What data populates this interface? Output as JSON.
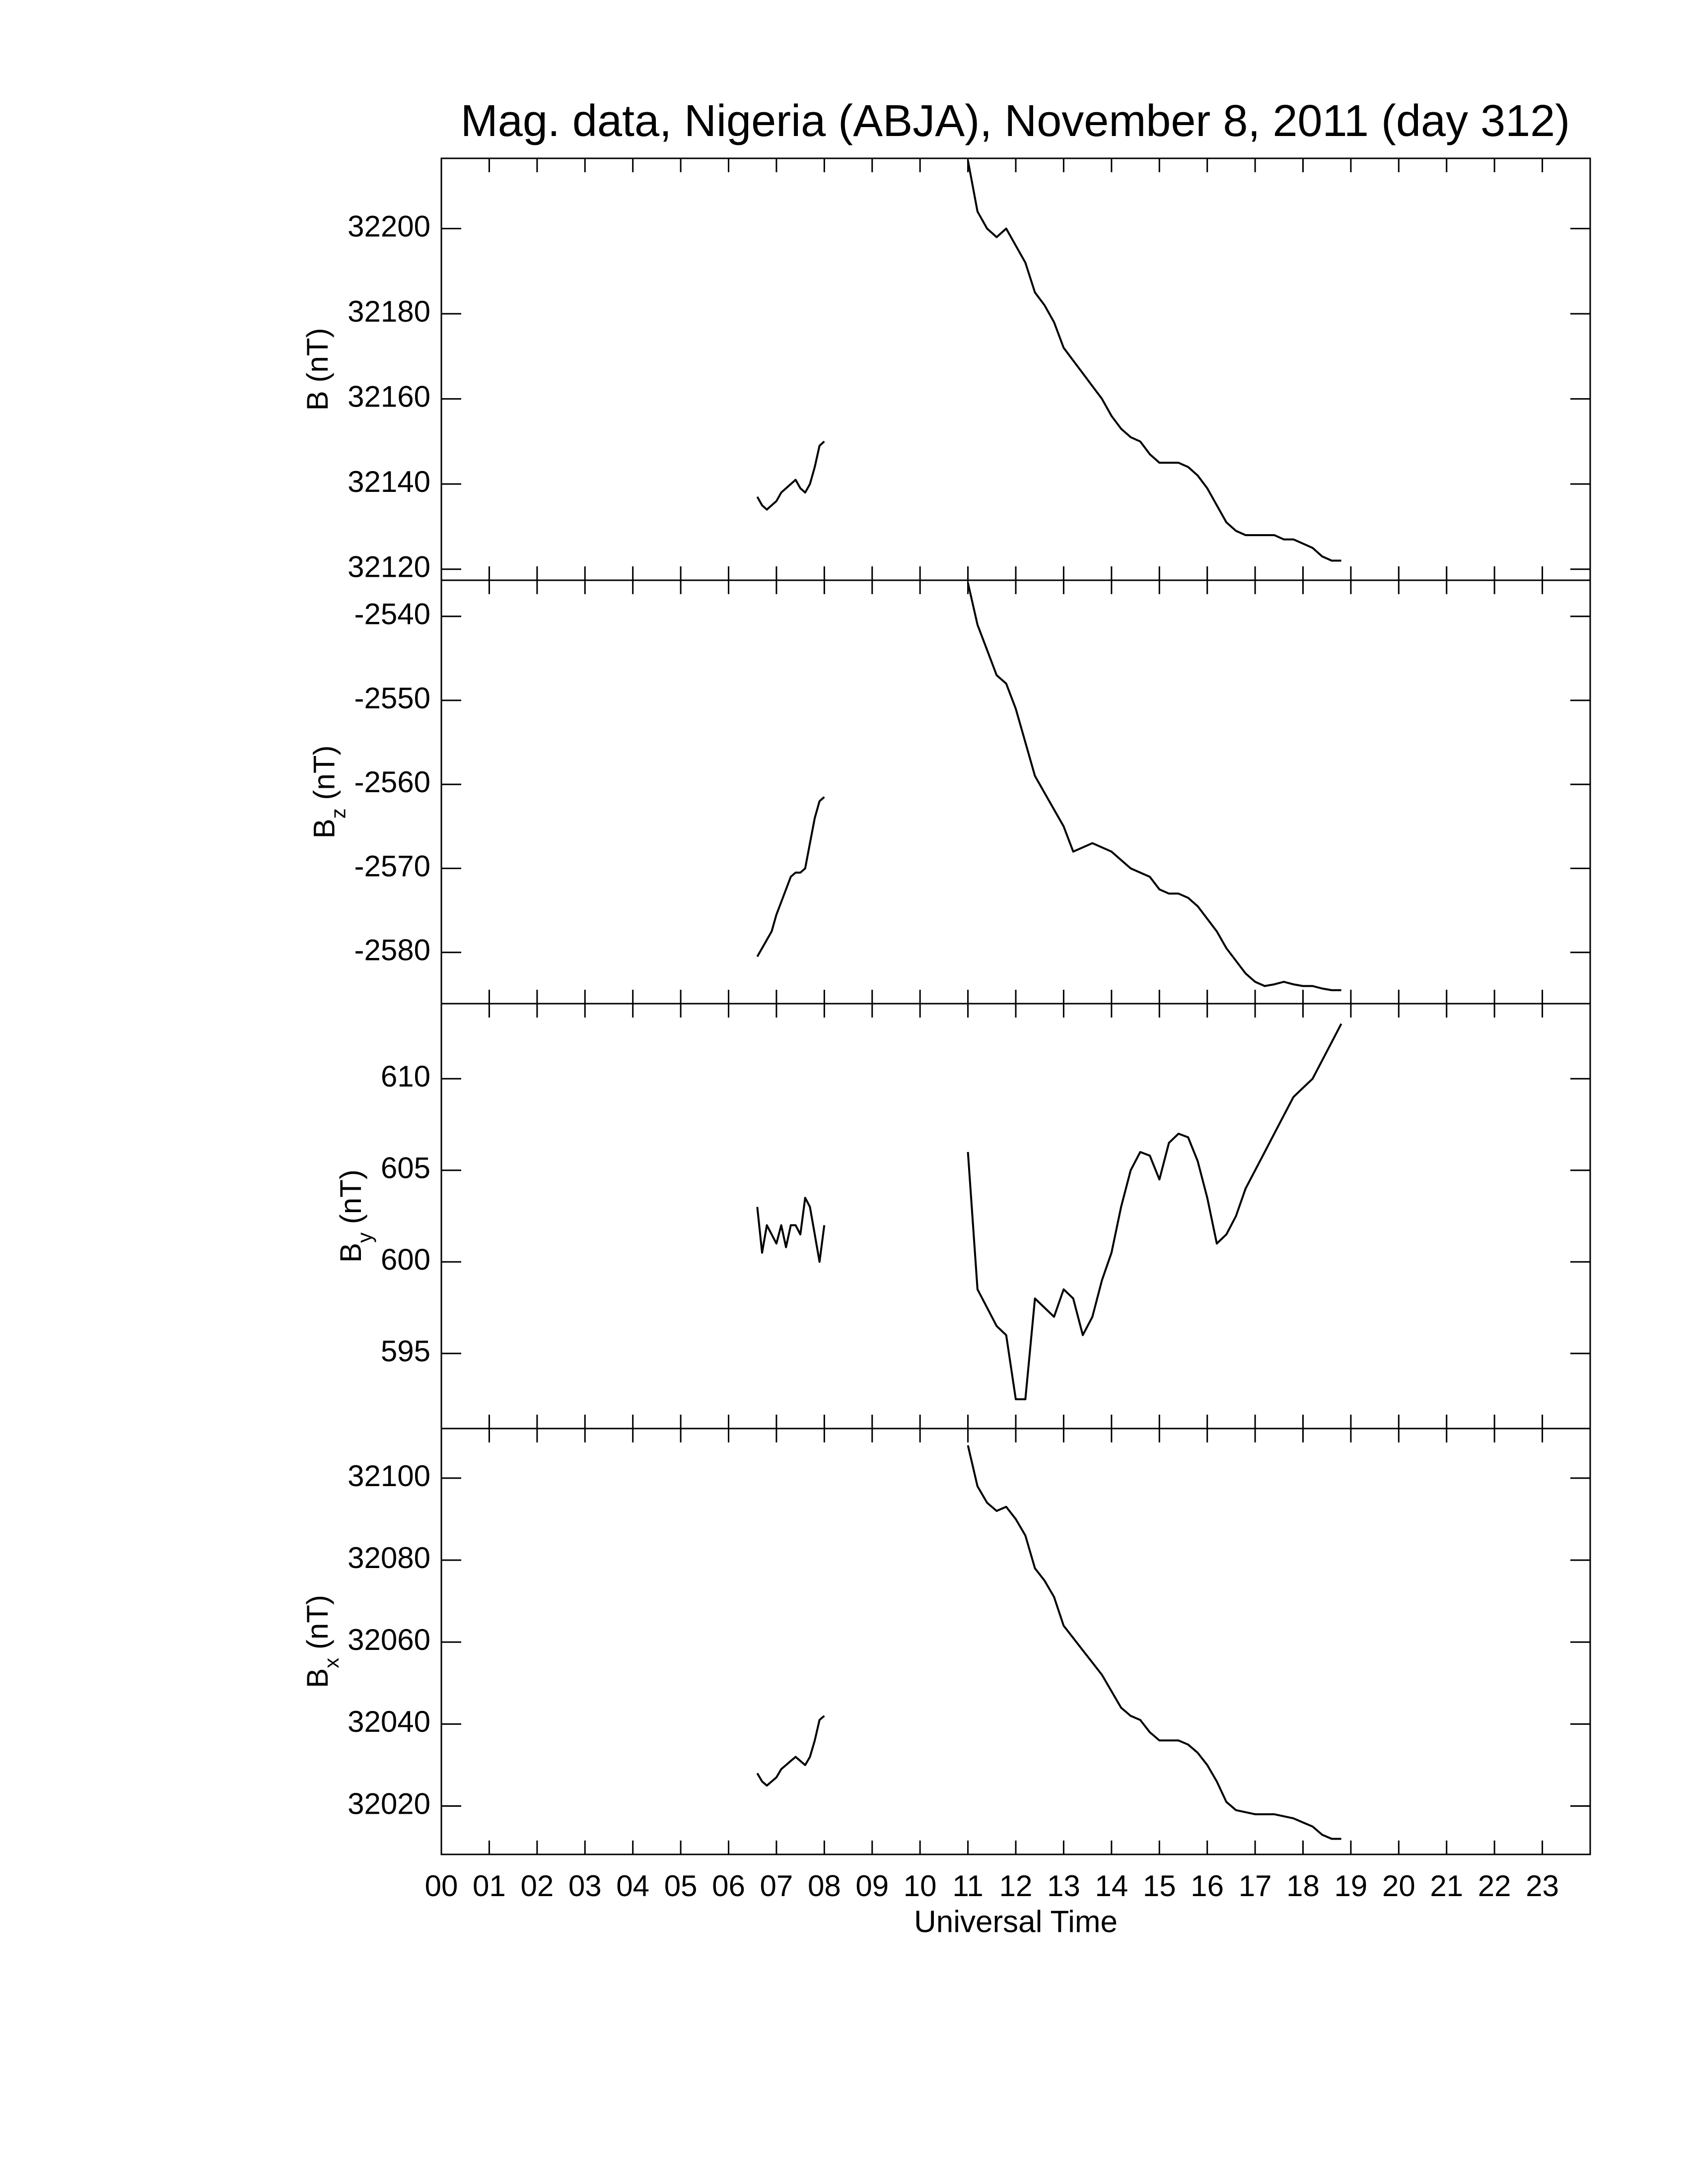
{
  "chart_data": [
    {
      "type": "line",
      "title": "Mag. data, Nigeria (ABJA), November 8, 2011 (day 312)",
      "ylabel": {
        "symbol": "B",
        "unit": "(nT)"
      },
      "xlim": [
        0,
        24
      ],
      "ylim": [
        32117.4,
        32216.5
      ],
      "yticks": [
        32120,
        32140,
        32160,
        32180,
        32200
      ],
      "color": "#000000",
      "x": [
        6.6,
        6.7,
        6.8,
        6.9,
        7.0,
        7.1,
        7.2,
        7.3,
        7.4,
        7.5,
        7.6,
        7.7,
        7.8,
        7.9,
        8.0,
        9.5,
        11.0,
        11.2,
        11.4,
        11.6,
        11.8,
        12.0,
        12.2,
        12.4,
        12.6,
        12.8,
        13.0,
        13.2,
        13.4,
        13.6,
        13.8,
        14.0,
        14.2,
        14.4,
        14.6,
        14.8,
        15.0,
        15.2,
        15.4,
        15.6,
        15.8,
        16.0,
        16.2,
        16.4,
        16.6,
        16.8,
        17.0,
        17.2,
        17.4,
        17.6,
        17.8,
        18.0,
        18.2,
        18.4,
        18.6,
        18.8
      ],
      "values": [
        32137,
        32135,
        32134,
        32135,
        32136,
        32138,
        32139,
        32140,
        32141,
        32139,
        32138,
        32140,
        32144,
        32149,
        32150,
        null,
        32216,
        32204,
        32200,
        32198,
        32200,
        32196,
        32192,
        32185,
        32182,
        32178,
        32172,
        32169,
        32166,
        32163,
        32160,
        32156,
        32153,
        32151,
        32150,
        32147,
        32145,
        32145,
        32145,
        32144,
        32142,
        32139,
        32135,
        32131,
        32129,
        32128,
        32128,
        32128,
        32128,
        32127,
        32127,
        32126,
        32125,
        32123,
        32122,
        32122
      ]
    },
    {
      "type": "line",
      "ylabel": {
        "symbol": "B",
        "subscript": "z",
        "unit": "(nT)"
      },
      "xlim": [
        0,
        24
      ],
      "ylim": [
        -2586.1,
        -2535.7
      ],
      "yticks": [
        -2580,
        -2570,
        -2560,
        -2550,
        -2540
      ],
      "color": "#000000",
      "x": [
        6.6,
        6.7,
        6.8,
        6.9,
        7.0,
        7.1,
        7.2,
        7.3,
        7.4,
        7.5,
        7.6,
        7.7,
        7.8,
        7.9,
        8.0,
        9.5,
        11.0,
        11.2,
        11.4,
        11.6,
        11.8,
        12.0,
        12.2,
        12.4,
        12.6,
        12.8,
        13.0,
        13.2,
        13.4,
        13.6,
        13.8,
        14.0,
        14.2,
        14.4,
        14.6,
        14.8,
        15.0,
        15.2,
        15.4,
        15.6,
        15.8,
        16.0,
        16.2,
        16.4,
        16.6,
        16.8,
        17.0,
        17.2,
        17.4,
        17.6,
        17.8,
        18.0,
        18.2,
        18.4,
        18.6,
        18.8
      ],
      "values": [
        -2580.5,
        -2579.5,
        -2578.5,
        -2577.5,
        -2575.5,
        -2574,
        -2572.5,
        -2571,
        -2570.5,
        -2570.5,
        -2570,
        -2567,
        -2564,
        -2562,
        -2561.5,
        null,
        -2536,
        -2541,
        -2544,
        -2547,
        -2548,
        -2551,
        -2555,
        -2559,
        -2561,
        -2563,
        -2565,
        -2568,
        -2567.5,
        -2567,
        -2567.5,
        -2568,
        -2569,
        -2570,
        -2570.5,
        -2571,
        -2572.5,
        -2573,
        -2573,
        -2573.5,
        -2574.5,
        -2576,
        -2577.5,
        -2579.5,
        -2581,
        -2582.5,
        -2583.5,
        -2584,
        -2583.8,
        -2583.5,
        -2583.8,
        -2584,
        -2584,
        -2584.3,
        -2584.5,
        -2584.5
      ]
    },
    {
      "type": "line",
      "ylabel": {
        "symbol": "B",
        "subscript": "y",
        "unit": "(nT)"
      },
      "xlim": [
        0,
        24
      ],
      "ylim": [
        590.9,
        614.1
      ],
      "yticks": [
        595,
        600,
        605,
        610
      ],
      "color": "#000000",
      "x": [
        6.6,
        6.7,
        6.8,
        6.9,
        7.0,
        7.1,
        7.2,
        7.3,
        7.4,
        7.5,
        7.6,
        7.7,
        7.8,
        7.9,
        8.0,
        9.5,
        11.0,
        11.2,
        11.4,
        11.6,
        11.8,
        12.0,
        12.2,
        12.4,
        12.6,
        12.8,
        13.0,
        13.2,
        13.4,
        13.6,
        13.8,
        14.0,
        14.2,
        14.4,
        14.6,
        14.8,
        15.0,
        15.2,
        15.4,
        15.6,
        15.8,
        16.0,
        16.2,
        16.4,
        16.6,
        16.8,
        17.0,
        17.2,
        17.4,
        17.6,
        17.8,
        18.0,
        18.2,
        18.4,
        18.6,
        18.8
      ],
      "values": [
        603,
        600.5,
        602,
        601.5,
        601,
        602,
        600.8,
        602,
        602,
        601.5,
        603.5,
        603,
        601.5,
        600,
        602,
        null,
        606,
        598.5,
        597.5,
        596.5,
        596,
        592.5,
        592.5,
        598,
        597.5,
        597,
        598.5,
        598,
        596,
        597,
        599,
        600.5,
        603,
        605,
        606,
        605.8,
        604.5,
        606.5,
        607,
        606.8,
        605.5,
        603.5,
        601,
        601.5,
        602.5,
        604,
        605,
        606,
        607,
        608,
        609,
        609.5,
        610,
        611,
        612,
        613
      ]
    },
    {
      "type": "line",
      "ylabel": {
        "symbol": "B",
        "subscript": "x",
        "unit": "(nT)"
      },
      "xlabel": "Universal Time",
      "xlim": [
        0,
        24
      ],
      "ylim": [
        32008.2,
        32112.1
      ],
      "yticks": [
        32020,
        32040,
        32060,
        32080,
        32100
      ],
      "xticks": [
        {
          "value": 0,
          "label": "00"
        },
        {
          "value": 1,
          "label": "01"
        },
        {
          "value": 2,
          "label": "02"
        },
        {
          "value": 3,
          "label": "03"
        },
        {
          "value": 4,
          "label": "04"
        },
        {
          "value": 5,
          "label": "05"
        },
        {
          "value": 6,
          "label": "06"
        },
        {
          "value": 7,
          "label": "07"
        },
        {
          "value": 8,
          "label": "08"
        },
        {
          "value": 9,
          "label": "09"
        },
        {
          "value": 10,
          "label": "10"
        },
        {
          "value": 11,
          "label": "11"
        },
        {
          "value": 12,
          "label": "12"
        },
        {
          "value": 13,
          "label": "13"
        },
        {
          "value": 14,
          "label": "14"
        },
        {
          "value": 15,
          "label": "15"
        },
        {
          "value": 16,
          "label": "16"
        },
        {
          "value": 17,
          "label": "17"
        },
        {
          "value": 18,
          "label": "18"
        },
        {
          "value": 19,
          "label": "19"
        },
        {
          "value": 20,
          "label": "20"
        },
        {
          "value": 21,
          "label": "21"
        },
        {
          "value": 22,
          "label": "22"
        },
        {
          "value": 23,
          "label": "23"
        }
      ],
      "color": "#000000",
      "x": [
        6.6,
        6.7,
        6.8,
        6.9,
        7.0,
        7.1,
        7.2,
        7.3,
        7.4,
        7.5,
        7.6,
        7.7,
        7.8,
        7.9,
        8.0,
        9.5,
        11.0,
        11.2,
        11.4,
        11.6,
        11.8,
        12.0,
        12.2,
        12.4,
        12.6,
        12.8,
        13.0,
        13.2,
        13.4,
        13.6,
        13.8,
        14.0,
        14.2,
        14.4,
        14.6,
        14.8,
        15.0,
        15.2,
        15.4,
        15.6,
        15.8,
        16.0,
        16.2,
        16.4,
        16.6,
        16.8,
        17.0,
        17.2,
        17.4,
        17.6,
        17.8,
        18.0,
        18.2,
        18.4,
        18.6,
        18.8
      ],
      "values": [
        32028,
        32026,
        32025,
        32026,
        32027,
        32029,
        32030,
        32031,
        32032,
        32031,
        32030,
        32032,
        32036,
        32041,
        32042,
        null,
        32108,
        32098,
        32094,
        32092,
        32093,
        32090,
        32086,
        32078,
        32075,
        32071,
        32064,
        32061,
        32058,
        32055,
        32052,
        32048,
        32044,
        32042,
        32041,
        32038,
        32036,
        32036,
        32036,
        32035,
        32033,
        32030,
        32026,
        32021,
        32019,
        32018.5,
        32018,
        32018,
        32018,
        32017.5,
        32017,
        32016,
        32015,
        32013,
        32012,
        32012
      ]
    }
  ]
}
